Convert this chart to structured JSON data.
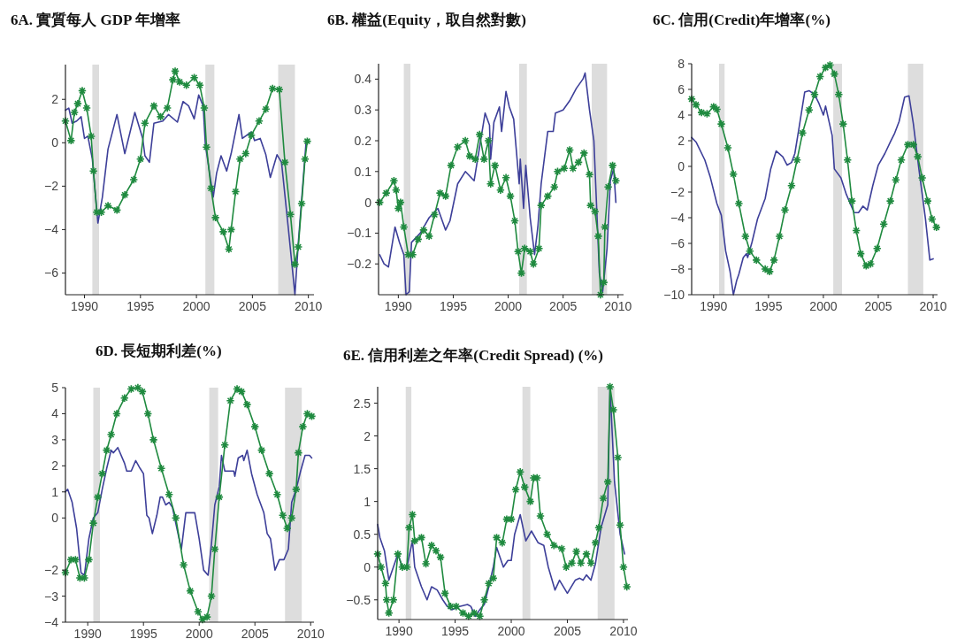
{
  "chart_data": [
    {
      "type": "line",
      "title": "6A. 實質每人 GDP 年增率",
      "xlim": [
        1988.3,
        2010.5
      ],
      "xticks": [
        1990,
        1995,
        2000,
        2005,
        2010
      ],
      "ylim": [
        -7,
        3.6
      ],
      "yticks": [
        -6,
        -4,
        -2,
        0,
        2
      ],
      "grid": false,
      "bands": [
        {
          "axis": "x",
          "from": 1990.7,
          "to": 1991.3,
          "color": "#dddddd"
        },
        {
          "axis": "x",
          "from": 2000.8,
          "to": 2001.6,
          "color": "#dddddd"
        },
        {
          "axis": "x",
          "from": 2007.3,
          "to": 2008.8,
          "color": "#dddddd"
        }
      ],
      "series": [
        {
          "color": "#3d3f99",
          "marker": "none",
          "x": [
            1988.3,
            1988.6,
            1988.9,
            1989.3,
            1989.7,
            1990.0,
            1990.3,
            1990.7,
            1991.2,
            1991.6,
            1992.1,
            1992.9,
            1993.6,
            1994.5,
            1995.2,
            1995.4,
            1995.8,
            1996.2,
            1997.0,
            1997.5,
            1998.3,
            1998.8,
            1999.3,
            1999.8,
            2000.2,
            2000.6,
            2000.8,
            2001.5,
            2001.8,
            2002.2,
            2002.7,
            2003.1,
            2003.8,
            2004.1,
            2004.9,
            2005.2,
            2005.7,
            2006.2,
            2006.6,
            2007.2,
            2007.6,
            2008.2,
            2008.8,
            2009.1,
            2009.8
          ],
          "values": [
            1.5,
            1.6,
            0.9,
            1.0,
            1.2,
            0.2,
            0.3,
            -0.75,
            -3.7,
            -2.5,
            -0.3,
            1.3,
            -0.5,
            1.4,
            0.2,
            -0.6,
            -0.9,
            0.9,
            1.0,
            1.3,
            0.95,
            1.9,
            1.7,
            1.1,
            2.2,
            1.7,
            -0.1,
            -2.5,
            -1.4,
            -0.6,
            -1.3,
            -0.5,
            1.3,
            0.2,
            0.5,
            0.1,
            0.2,
            -0.55,
            -1.6,
            -0.55,
            -0.9,
            -3.9,
            -7.0,
            -4.6,
            0.07
          ]
        },
        {
          "color": "#1f8a3f",
          "marker": "cross",
          "x": [
            1988.3,
            1988.8,
            1989.1,
            1989.4,
            1989.8,
            1990.2,
            1990.6,
            1990.8,
            1991.1,
            1991.5,
            1992.1,
            1992.9,
            1993.6,
            1994.4,
            1995.0,
            1995.4,
            1996.2,
            1996.8,
            1997.4,
            1997.9,
            1998.1,
            1998.5,
            1999.1,
            1999.8,
            2000.3,
            2000.7,
            2000.9,
            2001.3,
            2001.7,
            2002.4,
            2002.9,
            2003.1,
            2003.5,
            2003.9,
            2004.4,
            2004.9,
            2005.6,
            2006.2,
            2006.8,
            2007.4,
            2007.9,
            2008.4,
            2008.8,
            2009.1,
            2009.4,
            2009.7,
            2009.9
          ],
          "values": [
            1.0,
            0.1,
            1.4,
            1.8,
            2.4,
            1.6,
            0.3,
            -1.3,
            -3.2,
            -3.2,
            -2.9,
            -3.1,
            -2.4,
            -1.7,
            -0.75,
            0.9,
            1.7,
            1.2,
            1.6,
            2.9,
            3.3,
            2.8,
            2.65,
            3.0,
            2.65,
            1.6,
            -0.2,
            -2.1,
            -3.45,
            -4.1,
            -4.9,
            -4.0,
            -2.25,
            -0.75,
            -0.5,
            0.35,
            1.0,
            1.55,
            2.5,
            2.45,
            -0.9,
            -3.3,
            -5.6,
            -4.8,
            -2.8,
            -0.75,
            0.07
          ]
        }
      ]
    },
    {
      "type": "line",
      "title": "6B. 權益(Equity，取自然對數)",
      "xlim": [
        1988.2,
        2010.5
      ],
      "xticks": [
        1990,
        1995,
        2000,
        2005,
        2010
      ],
      "ylim": [
        -0.3,
        0.45
      ],
      "yticks": [
        -0.2,
        -0.1,
        0,
        0.1,
        0.2,
        0.3,
        0.4
      ],
      "grid": false,
      "bands": [
        {
          "axis": "x",
          "from": 1990.5,
          "to": 1991.1,
          "color": "#dddddd"
        },
        {
          "axis": "x",
          "from": 2001.0,
          "to": 2001.7,
          "color": "#dddddd"
        },
        {
          "axis": "x",
          "from": 2007.6,
          "to": 2009.0,
          "color": "#dddddd"
        }
      ],
      "series": [
        {
          "color": "#3d3f99",
          "marker": "none",
          "x": [
            1988.3,
            1988.7,
            1989.1,
            1989.7,
            1990.1,
            1990.5,
            1990.7,
            1991.0,
            1991.2,
            1992.0,
            1992.8,
            1993.6,
            1994.3,
            1994.7,
            1995.4,
            1996.1,
            1996.9,
            1997.4,
            1997.9,
            1998.3,
            1998.4,
            1998.7,
            1999.2,
            1999.4,
            1999.8,
            2000.1,
            2000.5,
            2001.0,
            2001.1,
            2001.4,
            2001.6,
            2002.0,
            2002.4,
            2002.7,
            2003.0,
            2003.6,
            2004.1,
            2004.3,
            2005.0,
            2005.6,
            2006.2,
            2006.8,
            2007.0,
            2007.4,
            2007.8,
            2008.3,
            2008.6,
            2009.0,
            2009.3,
            2009.6,
            2009.8
          ],
          "values": [
            -0.17,
            -0.2,
            -0.21,
            -0.08,
            -0.13,
            -0.17,
            -0.3,
            -0.29,
            -0.13,
            -0.1,
            -0.05,
            -0.02,
            -0.09,
            -0.06,
            0.06,
            0.1,
            0.07,
            0.18,
            0.29,
            0.25,
            0.14,
            0.26,
            0.31,
            0.23,
            0.36,
            0.31,
            0.27,
            0.06,
            0.14,
            -0.02,
            0.12,
            -0.05,
            -0.17,
            -0.08,
            0.06,
            0.23,
            0.23,
            0.29,
            0.3,
            0.33,
            0.37,
            0.4,
            0.42,
            0.3,
            0.2,
            -0.23,
            -0.29,
            -0.15,
            0.07,
            0.11,
            0.0
          ]
        },
        {
          "color": "#1f8a3f",
          "marker": "cross",
          "x": [
            1988.3,
            1988.9,
            1989.6,
            1989.8,
            1990.0,
            1990.2,
            1990.5,
            1990.9,
            1991.3,
            1991.8,
            1992.3,
            1992.8,
            1993.3,
            1993.8,
            1994.3,
            1994.8,
            1995.4,
            1996.1,
            1996.5,
            1997.0,
            1997.4,
            1997.8,
            1998.2,
            1998.4,
            1998.8,
            1999.3,
            1999.8,
            2000.2,
            2000.6,
            2000.9,
            2001.2,
            2001.5,
            2002.0,
            2002.3,
            2002.8,
            2003.0,
            2003.6,
            2004.2,
            2004.5,
            2005.1,
            2005.6,
            2005.9,
            2006.4,
            2006.9,
            2007.4,
            2007.5,
            2007.9,
            2008.2,
            2008.4,
            2008.7,
            2008.8,
            2009.1,
            2009.5,
            2009.8
          ],
          "values": [
            0.0,
            0.03,
            0.07,
            0.04,
            -0.02,
            0.0,
            -0.08,
            -0.17,
            -0.17,
            -0.12,
            -0.09,
            -0.11,
            -0.04,
            0.03,
            0.02,
            0.12,
            0.18,
            0.2,
            0.15,
            0.14,
            0.22,
            0.14,
            0.2,
            0.06,
            0.12,
            0.04,
            0.08,
            0.02,
            -0.06,
            -0.16,
            -0.23,
            -0.15,
            -0.16,
            -0.2,
            -0.15,
            -0.01,
            0.02,
            0.05,
            0.1,
            0.11,
            0.17,
            0.11,
            0.13,
            0.16,
            0.09,
            -0.01,
            -0.03,
            -0.11,
            -0.3,
            -0.26,
            -0.08,
            0.05,
            0.12,
            0.07
          ]
        }
      ]
    },
    {
      "type": "line",
      "title": "6C. 信用(Credit)年增率(%)",
      "xlim": [
        1988,
        2010.4
      ],
      "xticks": [
        1990,
        1995,
        2000,
        2005,
        2010
      ],
      "ylim": [
        -10,
        8
      ],
      "yticks": [
        -10,
        -8,
        -6,
        -4,
        -2,
        0,
        2,
        4,
        6,
        8
      ],
      "grid": false,
      "bands": [
        {
          "axis": "x",
          "from": 1990.5,
          "to": 1991.0,
          "color": "#dddddd"
        },
        {
          "axis": "x",
          "from": 2000.9,
          "to": 2001.7,
          "color": "#dddddd"
        },
        {
          "axis": "x",
          "from": 2007.7,
          "to": 2009.1,
          "color": "#dddddd"
        }
      ],
      "series": [
        {
          "color": "#3d3f99",
          "marker": "none",
          "x": [
            1988.0,
            1988.4,
            1989.2,
            1989.7,
            1990.3,
            1990.7,
            1991.1,
            1991.5,
            1991.8,
            1992.1,
            1992.3,
            1992.7,
            1993.0,
            1993.1,
            1993.5,
            1994.0,
            1994.7,
            1995.2,
            1995.7,
            1996.3,
            1996.7,
            1997.1,
            1997.4,
            1997.8,
            1998.3,
            1998.7,
            1999.2,
            1999.6,
            2000.0,
            2000.2,
            2000.8,
            2001.0,
            2001.6,
            2002.1,
            2002.8,
            2003.2,
            2003.6,
            2004.0,
            2004.5,
            2005.0,
            2005.6,
            2006.1,
            2006.5,
            2006.9,
            2007.4,
            2007.8,
            2008.2,
            2008.7,
            2009.3,
            2009.7,
            2010.0
          ],
          "values": [
            2.25,
            1.9,
            0.5,
            -0.85,
            -2.9,
            -3.8,
            -6.6,
            -8.2,
            -10.0,
            -8.9,
            -8.4,
            -7.1,
            -6.8,
            -7.1,
            -5.9,
            -4.1,
            -2.5,
            -0.2,
            1.2,
            0.75,
            0.1,
            0.3,
            1.0,
            3.1,
            5.8,
            5.9,
            5.6,
            4.9,
            4.0,
            4.7,
            2.4,
            -0.2,
            -0.9,
            -2.2,
            -3.6,
            -3.6,
            -3.1,
            -3.4,
            -1.5,
            0.1,
            1.0,
            1.9,
            2.6,
            3.5,
            5.4,
            5.5,
            3.3,
            -0.2,
            -4.1,
            -7.3,
            -7.2
          ]
        },
        {
          "color": "#1f8a3f",
          "marker": "cross",
          "x": [
            1988.0,
            1988.4,
            1988.9,
            1989.4,
            1990.0,
            1990.3,
            1990.7,
            1991.3,
            1991.8,
            1992.3,
            1992.9,
            1993.3,
            1993.9,
            1994.7,
            1995.1,
            1995.5,
            1996.0,
            1996.5,
            1997.1,
            1997.6,
            1998.1,
            1998.7,
            1999.2,
            1999.7,
            2000.2,
            2000.6,
            2001.0,
            2001.4,
            2001.8,
            2002.2,
            2002.6,
            2003.0,
            2003.4,
            2003.9,
            2004.3,
            2004.9,
            2005.5,
            2006.1,
            2006.6,
            2007.1,
            2007.7,
            2008.2,
            2008.6,
            2009.0,
            2009.5,
            2009.9,
            2010.3
          ],
          "values": [
            5.25,
            4.8,
            4.2,
            4.1,
            4.65,
            4.45,
            3.3,
            1.45,
            -0.6,
            -2.9,
            -5.45,
            -6.6,
            -7.3,
            -8.0,
            -8.2,
            -7.3,
            -5.45,
            -3.4,
            -1.5,
            0.5,
            2.6,
            4.4,
            5.6,
            7.0,
            7.7,
            7.9,
            7.2,
            5.6,
            3.3,
            0.5,
            -2.7,
            -5.0,
            -6.8,
            -7.75,
            -7.6,
            -6.4,
            -4.5,
            -2.7,
            -1.05,
            0.5,
            1.7,
            1.7,
            0.75,
            -0.9,
            -2.7,
            -4.1,
            -4.75
          ]
        }
      ]
    },
    {
      "type": "line",
      "title": "6D. 長短期利差(%)",
      "xlim": [
        1988,
        2010.3
      ],
      "xticks": [
        1990,
        1995,
        2000,
        2005,
        2010
      ],
      "ylim": [
        -4,
        5
      ],
      "yticks": [
        -4,
        -3,
        -2,
        0,
        1,
        2,
        3,
        4,
        5
      ],
      "grid": false,
      "bands": [
        {
          "axis": "x",
          "from": 1990.5,
          "to": 1991.1,
          "color": "#dddddd"
        },
        {
          "axis": "x",
          "from": 2000.9,
          "to": 2001.7,
          "color": "#dddddd"
        },
        {
          "axis": "x",
          "from": 2007.7,
          "to": 2009.2,
          "color": "#dddddd"
        }
      ],
      "series": [
        {
          "color": "#3d3f99",
          "marker": "none",
          "x": [
            1988.0,
            1988.2,
            1988.6,
            1989.0,
            1989.4,
            1989.7,
            1990.1,
            1990.5,
            1990.9,
            1991.3,
            1991.7,
            1992.1,
            1992.3,
            1992.7,
            1993.3,
            1993.5,
            1993.9,
            1994.3,
            1994.7,
            1995.0,
            1995.3,
            1995.5,
            1995.8,
            1996.2,
            1996.5,
            1996.7,
            1997.0,
            1997.3,
            1997.6,
            1998.0,
            1998.4,
            1998.8,
            1999.4,
            1999.6,
            2000.0,
            2000.4,
            2000.8,
            2001.1,
            2001.4,
            2001.8,
            2002.0,
            2002.3,
            2002.7,
            2003.1,
            2003.2,
            2003.5,
            2003.9,
            2004.0,
            2004.3,
            2004.7,
            2005.2,
            2005.8,
            2006.1,
            2006.4,
            2006.8,
            2007.2,
            2007.6,
            2008.0,
            2008.3,
            2008.7,
            2009.1,
            2009.5,
            2009.9,
            2010.1
          ],
          "values": [
            1.0,
            1.1,
            0.6,
            -0.4,
            -2.1,
            -2.2,
            -0.8,
            0.0,
            0.2,
            1.1,
            1.9,
            2.6,
            2.5,
            2.7,
            2.1,
            1.8,
            1.8,
            2.2,
            1.9,
            1.7,
            0.1,
            0.0,
            -0.6,
            0.1,
            0.8,
            0.8,
            0.5,
            0.6,
            0.4,
            -0.4,
            -1.2,
            0.2,
            0.2,
            0.2,
            -0.8,
            -2.0,
            -2.2,
            -1.0,
            0.5,
            1.2,
            2.4,
            1.8,
            1.8,
            1.8,
            1.6,
            2.3,
            2.4,
            2.2,
            2.6,
            1.7,
            0.9,
            0.2,
            -0.6,
            -0.8,
            -2.0,
            -1.6,
            -1.6,
            -1.2,
            0.6,
            1.1,
            1.8,
            2.4,
            2.4,
            2.3
          ]
        },
        {
          "color": "#1f8a3f",
          "marker": "cross",
          "x": [
            1988.0,
            1988.5,
            1988.9,
            1989.3,
            1989.7,
            1990.1,
            1990.5,
            1990.9,
            1991.3,
            1991.7,
            1992.1,
            1992.6,
            1993.3,
            1993.9,
            1994.5,
            1994.9,
            1995.4,
            1995.9,
            1996.6,
            1997.3,
            1997.9,
            1998.6,
            1999.2,
            1999.9,
            2000.3,
            2000.7,
            2001.1,
            2001.4,
            2001.8,
            2002.3,
            2002.8,
            2003.4,
            2003.8,
            2004.3,
            2005.0,
            2005.6,
            2006.3,
            2007.0,
            2007.5,
            2007.9,
            2008.3,
            2008.7,
            2008.9,
            2009.3,
            2009.7,
            2010.1
          ],
          "values": [
            -2.1,
            -1.6,
            -1.6,
            -2.3,
            -2.3,
            -1.6,
            -0.2,
            0.8,
            1.7,
            2.6,
            3.2,
            4.0,
            4.6,
            4.95,
            5.0,
            4.85,
            4.0,
            3.0,
            1.9,
            0.9,
            0.0,
            -1.8,
            -2.8,
            -3.6,
            -3.9,
            -3.8,
            -3.0,
            -1.2,
            0.8,
            2.8,
            4.5,
            4.95,
            4.85,
            4.35,
            3.5,
            2.6,
            1.7,
            0.9,
            0.1,
            -0.4,
            0.0,
            1.1,
            2.5,
            3.5,
            4.0,
            3.9
          ]
        }
      ]
    },
    {
      "type": "line",
      "title": "6E. 信用利差之年率(Credit Spread) (%)",
      "xlim": [
        1988.1,
        2010.4
      ],
      "xticks": [
        1990,
        1995,
        2000,
        2005,
        2010
      ],
      "ylim": [
        -0.8,
        2.75
      ],
      "yticks": [
        -0.5,
        0,
        0.5,
        1,
        1.5,
        2,
        2.5
      ],
      "grid": false,
      "bands": [
        {
          "axis": "x",
          "from": 1990.6,
          "to": 1991.1,
          "color": "#dddddd"
        },
        {
          "axis": "x",
          "from": 2001.0,
          "to": 2001.7,
          "color": "#dddddd"
        },
        {
          "axis": "x",
          "from": 2007.7,
          "to": 2009.2,
          "color": "#dddddd"
        }
      ],
      "series": [
        {
          "color": "#3d3f99",
          "marker": "none",
          "x": [
            1988.1,
            1988.3,
            1988.7,
            1989.1,
            1989.5,
            1989.9,
            1990.3,
            1990.7,
            1991.2,
            1991.4,
            1992.0,
            1992.5,
            1992.9,
            1993.4,
            1993.9,
            1994.3,
            1994.7,
            1995.4,
            1996.1,
            1996.4,
            1996.8,
            1997.2,
            1997.6,
            1998.0,
            1998.4,
            1998.7,
            1998.9,
            1999.3,
            1999.7,
            2000.0,
            2000.3,
            2000.8,
            2001.3,
            2001.8,
            2002.4,
            2002.9,
            2003.3,
            2003.9,
            2004.3,
            2005.0,
            2005.7,
            2006.1,
            2006.4,
            2006.7,
            2007.1,
            2007.5,
            2008.0,
            2008.6,
            2008.8,
            2009.2,
            2009.7,
            2010.1
          ],
          "values": [
            0.65,
            0.45,
            0.25,
            -0.2,
            0.0,
            0.2,
            0.0,
            0.0,
            0.4,
            0.0,
            -0.3,
            -0.5,
            -0.3,
            -0.35,
            -0.5,
            -0.6,
            -0.65,
            -0.6,
            -0.57,
            -0.6,
            -0.75,
            -0.65,
            -0.57,
            -0.3,
            0.0,
            0.3,
            0.2,
            0.0,
            0.1,
            0.1,
            0.5,
            0.8,
            0.4,
            0.55,
            0.37,
            0.33,
            0.0,
            -0.35,
            -0.2,
            -0.4,
            -0.2,
            -0.17,
            -0.2,
            -0.12,
            -0.2,
            0.05,
            0.6,
            0.95,
            2.75,
            1.3,
            0.5,
            0.2
          ]
        },
        {
          "color": "#1f8a3f",
          "marker": "cross",
          "x": [
            1988.1,
            1988.4,
            1988.8,
            1988.9,
            1989.1,
            1989.5,
            1989.9,
            1990.3,
            1990.7,
            1990.9,
            1991.2,
            1991.4,
            1992.0,
            1992.4,
            1992.9,
            1993.3,
            1993.7,
            1994.1,
            1994.6,
            1995.1,
            1995.7,
            1996.2,
            1996.7,
            1997.2,
            1997.6,
            1998.0,
            1998.4,
            1998.7,
            1999.2,
            1999.6,
            2000.0,
            2000.4,
            2000.8,
            2001.2,
            2001.7,
            2002.0,
            2002.3,
            2002.6,
            2003.2,
            2003.8,
            2004.5,
            2004.9,
            2005.4,
            2005.8,
            2006.2,
            2006.7,
            2007.1,
            2007.5,
            2007.8,
            2008.2,
            2008.6,
            2008.8,
            2009.1,
            2009.5,
            2009.7,
            2010.0,
            2010.3
          ],
          "values": [
            0.2,
            0.0,
            -0.25,
            -0.5,
            -0.7,
            -0.5,
            0.2,
            0.0,
            0.0,
            0.6,
            0.8,
            0.4,
            0.45,
            0.05,
            0.33,
            0.25,
            0.15,
            -0.4,
            -0.6,
            -0.6,
            -0.7,
            -0.75,
            -0.7,
            -0.75,
            -0.5,
            -0.25,
            -0.17,
            0.45,
            0.37,
            0.73,
            0.73,
            1.18,
            1.45,
            1.22,
            1.0,
            1.36,
            1.36,
            0.78,
            0.5,
            0.33,
            0.28,
            0.0,
            0.06,
            0.24,
            0.06,
            0.2,
            0.06,
            0.37,
            0.6,
            1.05,
            1.3,
            2.75,
            2.4,
            1.67,
            0.64,
            0.0,
            -0.3
          ]
        }
      ]
    }
  ]
}
